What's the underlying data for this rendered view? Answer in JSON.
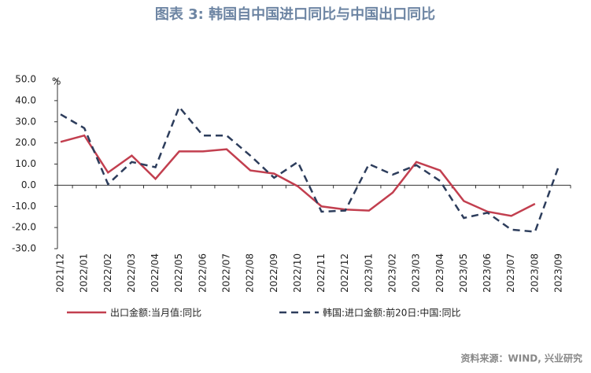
{
  "chart_data": {
    "type": "line",
    "title": "图表 3:  韩国自中国进口同比与中国出口同比",
    "y_unit": "%",
    "source": "资料来源：WIND, 兴业研究",
    "categories": [
      "2021/12",
      "2022/01",
      "2022/02",
      "2022/03",
      "2022/04",
      "2022/05",
      "2022/06",
      "2022/07",
      "2022/08",
      "2022/09",
      "2022/10",
      "2022/11",
      "2022/12",
      "2023/01",
      "2023/02",
      "2023/03",
      "2023/04",
      "2023/05",
      "2023/06",
      "2023/07",
      "2023/08",
      "2023/09"
    ],
    "series": [
      {
        "name": "出口金额:当月值:同比",
        "color": "#c23f4f",
        "dash": false,
        "values": [
          20.5,
          23.5,
          6,
          14,
          3,
          16,
          16,
          17,
          7,
          5.5,
          -0.5,
          -10,
          -11.5,
          -12,
          -3.5,
          11,
          7,
          -7.5,
          -12.5,
          -14.5,
          -8.8,
          null
        ]
      },
      {
        "name": "韩国:进口金额:前20日:中国:同比",
        "color": "#2d3d5c",
        "dash": true,
        "values": [
          33.5,
          27,
          0.5,
          11,
          8.5,
          37,
          23.5,
          23.5,
          14,
          3.5,
          11,
          -12.5,
          -12,
          10,
          5,
          9.5,
          2,
          -15.5,
          -13,
          -21,
          -22,
          9
        ]
      }
    ],
    "ylim": [
      -30,
      50
    ],
    "yticks": [
      {
        "value": -30,
        "label": "-30.0"
      },
      {
        "value": -20,
        "label": "-20.0"
      },
      {
        "value": -10,
        "label": "-10.0"
      },
      {
        "value": 0,
        "label": "0.0"
      },
      {
        "value": 10,
        "label": "10.0"
      },
      {
        "value": 20,
        "label": "20.0"
      },
      {
        "value": 30,
        "label": "30.0"
      },
      {
        "value": 40,
        "label": "40.0"
      },
      {
        "value": 50,
        "label": "50.0"
      }
    ]
  }
}
